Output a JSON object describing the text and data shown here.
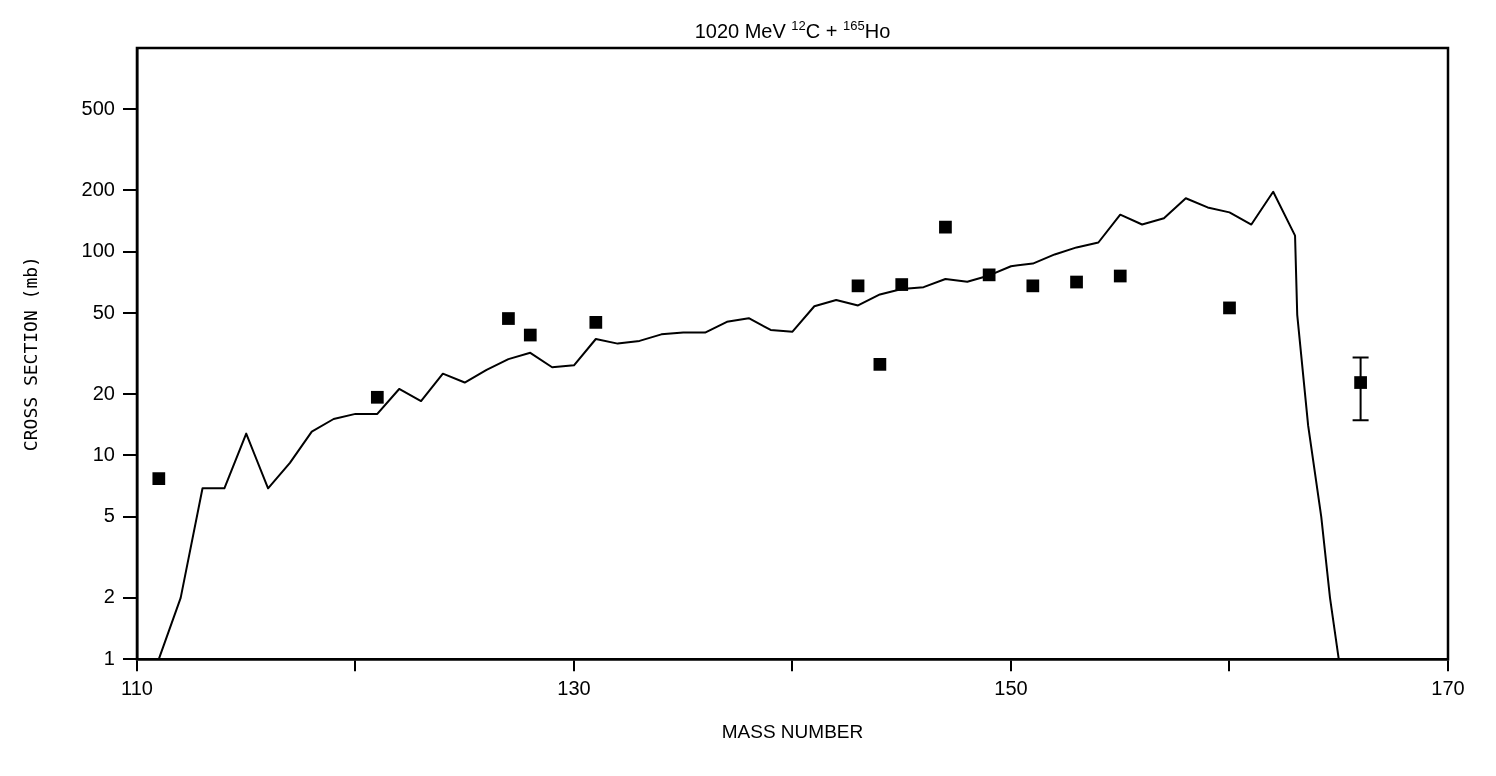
{
  "chart_data": {
    "type": "scatter",
    "title": "1020 MeV $^{12}$C + $^{165}$Ho",
    "xlabel": "MASS NUMBER",
    "ylabel": "CROSS SECTION (mb)",
    "log": "y",
    "grid": false,
    "legend": false,
    "xlim": [
      110,
      170
    ],
    "xticks": [
      110,
      {
        "value": 120,
        "label": null
      },
      130,
      {
        "value": 140,
        "label": null
      },
      150,
      {
        "value": 160,
        "label": null
      },
      170
    ],
    "ylim": [
      1,
      1000
    ],
    "yticks": [
      1,
      2,
      5,
      10,
      20,
      50,
      100,
      200,
      500
    ],
    "series": [
      {
        "type": "line",
        "color": "#000000",
        "marker": "none",
        "line_style": "solid",
        "x": [
          111,
          112,
          113,
          114,
          115,
          116,
          117,
          118,
          119,
          120,
          121,
          122,
          123,
          124,
          125,
          126,
          127,
          128,
          129,
          130,
          131,
          132,
          133,
          134,
          135,
          136,
          137,
          138,
          139,
          140,
          141,
          142,
          143,
          144,
          145,
          146,
          147,
          148,
          149,
          150,
          151,
          152,
          153,
          154,
          155,
          156,
          157,
          158,
          159,
          160,
          161,
          162,
          163,
          163.1,
          163.6,
          164.2,
          164.6,
          165
        ],
        "values": [
          1,
          2,
          6.9,
          6.9,
          12.8,
          6.9,
          9.2,
          13.1,
          15.1,
          16,
          16,
          21.2,
          18.5,
          25.2,
          22.8,
          26.3,
          29.7,
          31.9,
          27.1,
          27.7,
          37.3,
          35.4,
          36.5,
          39.3,
          40.1,
          40.1,
          45.3,
          47.2,
          41.3,
          40.5,
          54,
          58,
          54.5,
          61.7,
          65.6,
          67,
          73.5,
          71.2,
          76.5,
          84.9,
          87.5,
          97,
          105,
          111,
          152,
          136,
          146,
          183,
          165,
          156,
          136,
          197,
          120,
          49,
          14,
          5,
          2,
          1
        ]
      },
      {
        "color": "#000000",
        "marker": "square",
        "x": [
          111,
          121,
          127,
          128,
          131,
          143,
          144,
          145,
          147,
          149,
          151,
          153,
          155,
          160,
          166
        ],
        "values": [
          7.7,
          19.3,
          47,
          39,
          45,
          68,
          28,
          69,
          132,
          77,
          68,
          71,
          76,
          53,
          22.8
        ],
        "errors": [
          null,
          null,
          null,
          null,
          null,
          null,
          null,
          null,
          null,
          null,
          null,
          null,
          null,
          null,
          [
            14.9,
            30.3
          ]
        ]
      }
    ]
  }
}
